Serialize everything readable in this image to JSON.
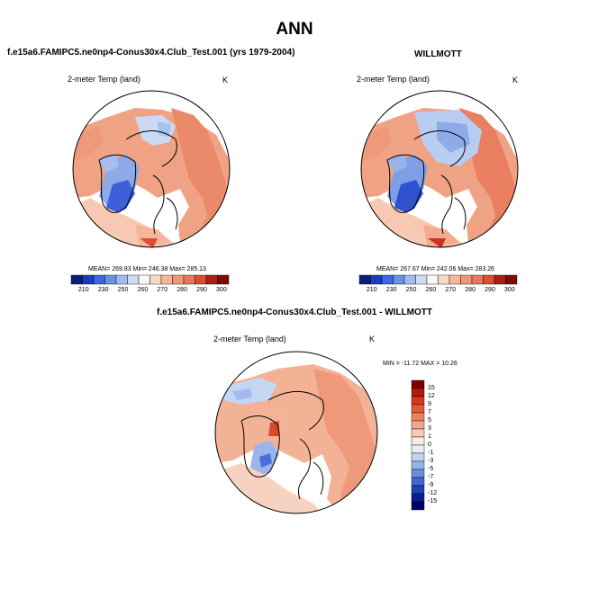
{
  "title": "ANN",
  "panels": [
    {
      "title": "f.e15a6.FAMIPC5.ne0np4-Conus30x4.Club_Test.001 (yrs 1979-2004)",
      "variable": "2-meter Temp (land)",
      "units": "K",
      "stats": "MEAN= 269.83  Min= 246.38  Max= 285.13",
      "colorbar_ticks": [
        "210",
        "230",
        "250",
        "260",
        "270",
        "280",
        "290",
        "300"
      ]
    },
    {
      "title": "WILLMOTT",
      "variable": "2-meter Temp (land)",
      "units": "K",
      "stats": "MEAN= 267.67  Min= 242.06  Max= 283.26",
      "colorbar_ticks": [
        "210",
        "230",
        "250",
        "260",
        "270",
        "280",
        "290",
        "300"
      ]
    },
    {
      "title": "f.e15a6.FAMIPC5.ne0np4-Conus30x4.Club_Test.001 - WILLMOTT",
      "variable": "2-meter Temp (land)",
      "units": "K",
      "stats": "MIN = -11.72 MAX = 10.26",
      "colorbar_ticks": [
        "15",
        "12",
        "9",
        "7",
        "5",
        "3",
        "1",
        "0",
        "-1",
        "-3",
        "-5",
        "-7",
        "-9",
        "-12",
        "-15"
      ]
    }
  ],
  "colors": {
    "abs_scale": [
      "#0c1d7a",
      "#1a3cc4",
      "#3d66df",
      "#6d8fe6",
      "#a2bbee",
      "#cfdbf5",
      "#f7f7f7",
      "#fbd9c9",
      "#f4b79b",
      "#ee9677",
      "#e8775a",
      "#de4f32",
      "#b01e12",
      "#7a0b05"
    ],
    "diff_scale": [
      "#800000",
      "#b21a0a",
      "#d4381d",
      "#e4593a",
      "#ee8060",
      "#f3a689",
      "#f7cbb6",
      "#fbeae0",
      "#e6edf8",
      "#c1d3f1",
      "#97b4e8",
      "#6a8fde",
      "#3f66d4",
      "#1f3fb8",
      "#0a1f8c",
      "#00006b"
    ],
    "land_diff": "#eea484",
    "land_warm": "#ef9678",
    "land_cold": "#a9c1ee",
    "ocean": "#ffffff"
  }
}
